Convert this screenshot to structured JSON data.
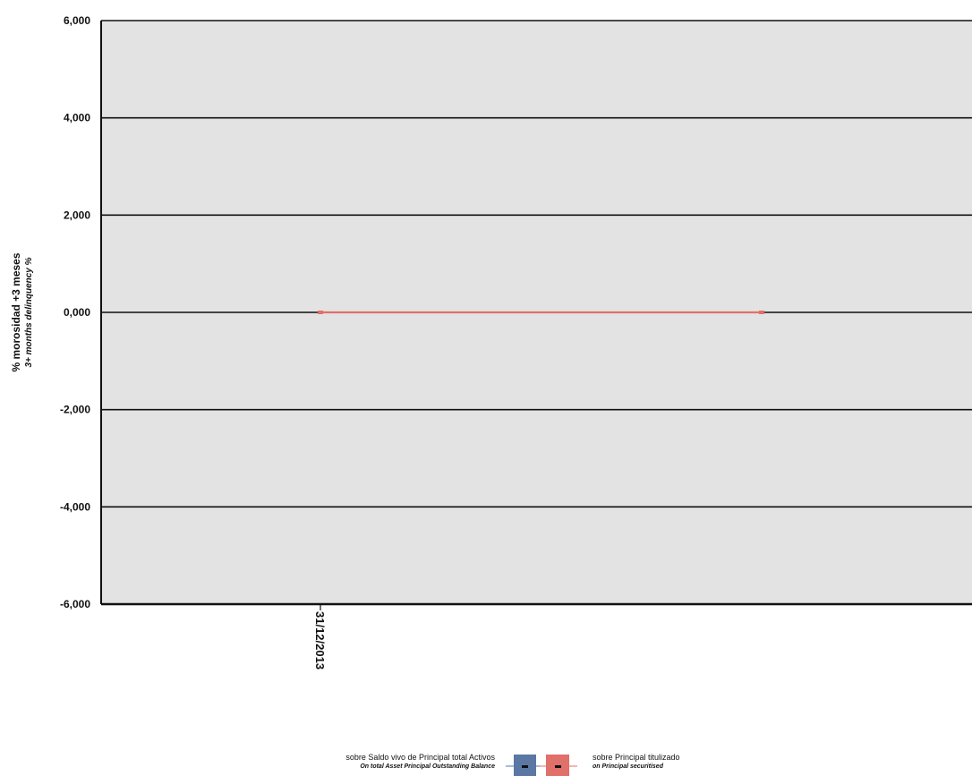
{
  "chart_data": {
    "type": "line",
    "ylabel": "% morosidad +3 meses",
    "ylabel_en": "3+ months delinquency %",
    "ylim": [
      -6,
      6
    ],
    "yticks": [
      {
        "value": 6,
        "label": "6,000"
      },
      {
        "value": 4,
        "label": "4,000"
      },
      {
        "value": 2,
        "label": "2,000"
      },
      {
        "value": 0,
        "label": "0,000"
      },
      {
        "value": -2,
        "label": "-2,000"
      },
      {
        "value": -4,
        "label": "-4,000"
      },
      {
        "value": -6,
        "label": "-6,000"
      }
    ],
    "categories": [
      "31/12/2013"
    ],
    "grid": true,
    "legend_position": "bottom-center",
    "series": [
      {
        "name": "sobre Saldo vivo de Principal total Activos",
        "name_en": "On total Asset Principal Outstanding Balance",
        "color": "#5b77a3",
        "values": [
          0
        ]
      },
      {
        "name": "sobre Principal titulizado",
        "name_en": "on Principal securitised",
        "color": "#e07069",
        "values": [
          0
        ]
      }
    ]
  }
}
